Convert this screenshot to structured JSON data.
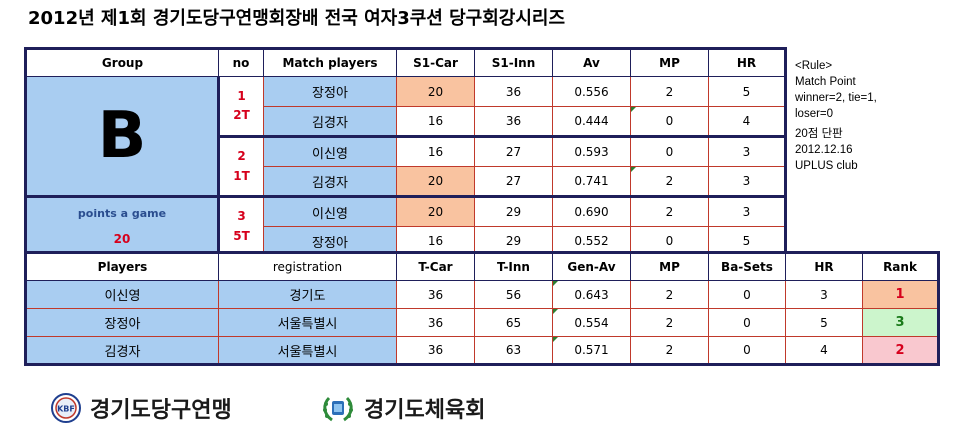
{
  "title": "2012년 제1회 경기도당구연맹회장배 전국 여자3쿠션 당구회강시리즈",
  "match_headers": {
    "group": "Group",
    "no": "no",
    "match_players": "Match players",
    "s1_car": "S1-Car",
    "s1_inn": "S1-Inn",
    "av": "Av",
    "mp": "MP",
    "hr": "HR"
  },
  "group": {
    "letter": "B",
    "points_label": "points a game",
    "points_value": "20"
  },
  "matches": [
    {
      "no": "1",
      "table": "2T",
      "players": [
        {
          "name": "장정아",
          "car": "20",
          "inn": "36",
          "av": "0.556",
          "mp": "2",
          "hr": "5"
        },
        {
          "name": "김경자",
          "car": "16",
          "inn": "36",
          "av": "0.444",
          "mp": "0",
          "hr": "4"
        }
      ]
    },
    {
      "no": "2",
      "table": "1T",
      "players": [
        {
          "name": "이신영",
          "car": "16",
          "inn": "27",
          "av": "0.593",
          "mp": "0",
          "hr": "3"
        },
        {
          "name": "김경자",
          "car": "20",
          "inn": "27",
          "av": "0.741",
          "mp": "2",
          "hr": "3"
        }
      ]
    },
    {
      "no": "3",
      "table": "5T",
      "players": [
        {
          "name": "이신영",
          "car": "20",
          "inn": "29",
          "av": "0.690",
          "mp": "2",
          "hr": "3"
        },
        {
          "name": "장정아",
          "car": "16",
          "inn": "29",
          "av": "0.552",
          "mp": "0",
          "hr": "5"
        }
      ]
    }
  ],
  "player_headers": {
    "players": "Players",
    "registration": "registration",
    "t_car": "T-Car",
    "t_inn": "T-Inn",
    "gen_av": "Gen-Av",
    "mp": "MP",
    "ba_sets": "Ba-Sets",
    "hr": "HR",
    "rank": "Rank"
  },
  "players": [
    {
      "name": "이신영",
      "registration": "경기도",
      "t_car": "36",
      "t_inn": "56",
      "gen_av": "0.643",
      "mp": "2",
      "ba_sets": "0",
      "hr": "3",
      "rank": "1",
      "rank_color": "#f9c3a0",
      "rank_text_color": "#d6001c"
    },
    {
      "name": "장정아",
      "registration": "서울특별시",
      "t_car": "36",
      "t_inn": "65",
      "gen_av": "0.554",
      "mp": "2",
      "ba_sets": "0",
      "hr": "5",
      "rank": "3",
      "rank_color": "#ccf5cc",
      "rank_text_color": "#1a7a1a"
    },
    {
      "name": "김경자",
      "registration": "서울특별시",
      "t_car": "36",
      "t_inn": "63",
      "gen_av": "0.571",
      "mp": "2",
      "ba_sets": "0",
      "hr": "4",
      "rank": "2",
      "rank_color": "#f9c8cf",
      "rank_text_color": "#d6001c"
    }
  ],
  "rule": {
    "heading": "<Rule>",
    "line1": "Match Point",
    "line2": "winner=2, tie=1,",
    "line3": "loser=0",
    "line4": "20점 단판",
    "line5": "2012.12.16",
    "line6": "UPLUS club"
  },
  "logos": {
    "left_mark": "KBF",
    "left_text": "경기도당구연맹",
    "right_text": "경기도체육회"
  }
}
